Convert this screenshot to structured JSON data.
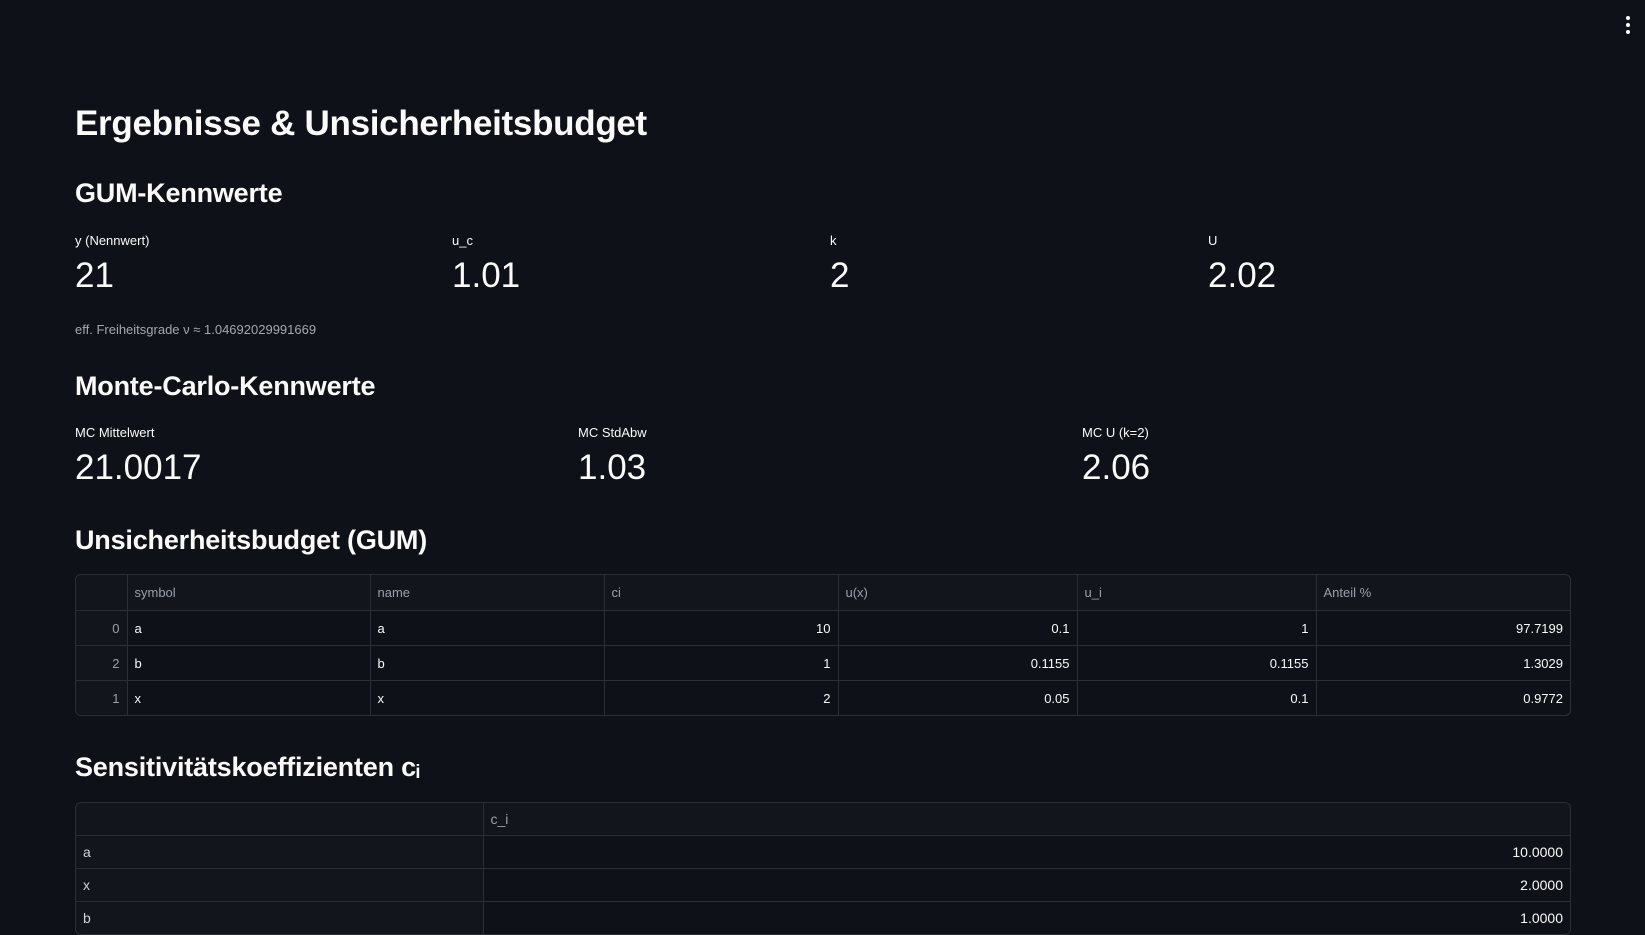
{
  "main": {
    "title": "Ergebnisse & Unsicherheitsbudget",
    "gum_section": {
      "heading": "GUM-Kennwerte",
      "metrics": [
        {
          "label": "y (Nennwert)",
          "value": "21"
        },
        {
          "label": "u_c",
          "value": "1.01"
        },
        {
          "label": "k",
          "value": "2"
        },
        {
          "label": "U",
          "value": "2.02"
        }
      ],
      "caption": "eff. Freiheitsgrade ν ≈ 1.04692029991669"
    },
    "mc_section": {
      "heading": "Monte-Carlo-Kennwerte",
      "metrics": [
        {
          "label": "MC Mittelwert",
          "value": "21.0017"
        },
        {
          "label": "MC StdAbw",
          "value": "1.03"
        },
        {
          "label": "MC U (k=2)",
          "value": "2.06"
        }
      ]
    },
    "budget_section": {
      "heading": "Unsicherheitsbudget (GUM)",
      "columns": [
        "",
        "symbol",
        "name",
        "ci",
        "u(x)",
        "u_i",
        "Anteil %"
      ],
      "rows": [
        {
          "index": "0",
          "symbol": "a",
          "name": "a",
          "ci": "10",
          "ux": "0.1",
          "ui": "1",
          "anteil": "97.7199"
        },
        {
          "index": "2",
          "symbol": "b",
          "name": "b",
          "ci": "1",
          "ux": "0.1155",
          "ui": "0.1155",
          "anteil": "1.3029"
        },
        {
          "index": "1",
          "symbol": "x",
          "name": "x",
          "ci": "2",
          "ux": "0.05",
          "ui": "0.1",
          "anteil": "0.9772"
        }
      ]
    },
    "sens_section": {
      "heading": "Sensitivitätskoeffizienten cᵢ",
      "columns": [
        "",
        "c_i"
      ],
      "rows": [
        {
          "name": "a",
          "value": "10.0000"
        },
        {
          "name": "x",
          "value": "2.0000"
        },
        {
          "name": "b",
          "value": "1.0000"
        }
      ]
    }
  }
}
